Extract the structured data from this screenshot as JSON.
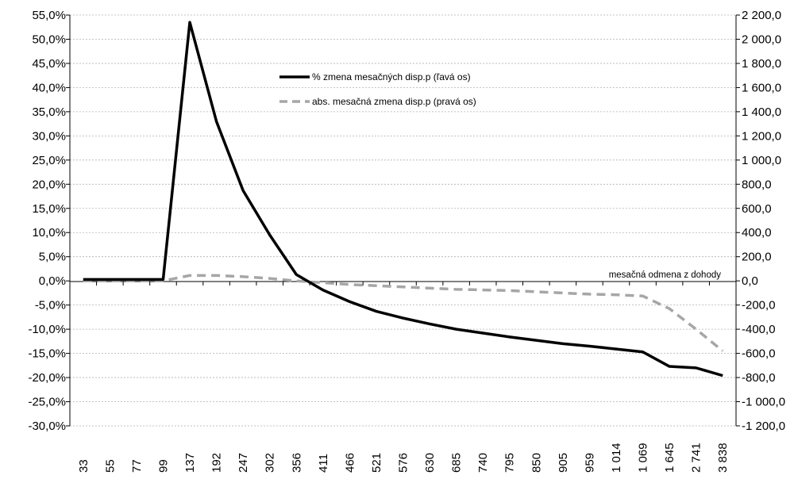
{
  "chart_data": {
    "type": "line",
    "xlabel": "mesačná odmena z dohody",
    "categories": [
      "33",
      "55",
      "77",
      "99",
      "137",
      "192",
      "247",
      "302",
      "356",
      "411",
      "466",
      "521",
      "576",
      "630",
      "685",
      "740",
      "795",
      "850",
      "905",
      "959",
      "1 014",
      "1 069",
      "1 645",
      "2 741",
      "3 838"
    ],
    "y_left": {
      "min": -30,
      "max": 55,
      "step": 5,
      "tick_labels": [
        "-30,0%",
        "-25,0%",
        "-20,0%",
        "-15,0%",
        "-10,0%",
        "-5,0%",
        "0,0%",
        "5,0%",
        "10,0%",
        "15,0%",
        "20,0%",
        "25,0%",
        "30,0%",
        "35,0%",
        "40,0%",
        "45,0%",
        "50,0%",
        "55,0%"
      ]
    },
    "y_right": {
      "min": -1200,
      "max": 2200,
      "step": 200,
      "tick_labels": [
        "-1 200,0",
        "-1 000,0",
        "-800,0",
        "-600,0",
        "-400,0",
        "-200,0",
        "0,0",
        "200,0",
        "400,0",
        "600,0",
        "800,0",
        "1 000,0",
        "1 200,0",
        "1 400,0",
        "1 600,0",
        "1 800,0",
        "2 000,0",
        "2 200,0"
      ]
    },
    "grid": true,
    "legend_position": "top-center",
    "series": [
      {
        "name": "% zmena mesačných disp.p (ľavá os)",
        "axis": "left",
        "style": "solid",
        "color": "#000000",
        "values": [
          0.3,
          0.3,
          0.3,
          0.3,
          53.5,
          33.0,
          18.7,
          9.5,
          1.3,
          -1.9,
          -4.3,
          -6.3,
          -7.7,
          -8.9,
          -10.0,
          -10.8,
          -11.6,
          -12.3,
          -13.0,
          -13.5,
          -14.1,
          -14.7,
          -17.7,
          -18.0,
          -19.6
        ]
      },
      {
        "name": "abs. mesačná zmena disp.p (pravá os)",
        "axis": "right",
        "style": "dashed",
        "color": "#a6a6a6",
        "values": [
          0,
          0,
          0,
          0,
          45,
          45,
          35,
          20,
          0,
          -15,
          -30,
          -40,
          -50,
          -60,
          -70,
          -75,
          -80,
          -90,
          -100,
          -110,
          -115,
          -125,
          -230,
          -400,
          -580
        ]
      }
    ]
  }
}
